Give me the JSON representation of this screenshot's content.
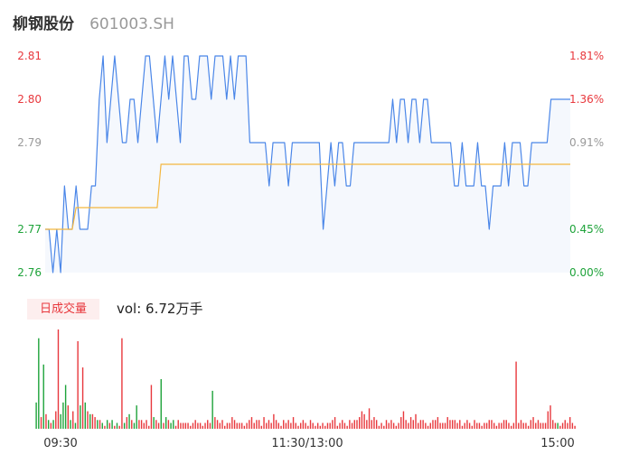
{
  "header": {
    "name": "柳钢股份",
    "code": "601003.SH"
  },
  "volume_panel": {
    "tab_label": "日成交量",
    "vol_label": "vol: 6.72万手"
  },
  "colors": {
    "price_line": "#4a86e8",
    "avg_line": "#f4b63f",
    "area_fill": "#f5f8fd",
    "up": "#e8383d",
    "down": "#1ea33a",
    "axis_neutral": "#999999"
  },
  "chart_data": [
    {
      "type": "line",
      "name": "price",
      "ylim": [
        2.76,
        2.81
      ],
      "yticks_left": [
        "2.81",
        "2.80",
        "2.79",
        "2.77",
        "2.76"
      ],
      "yticks_left_values": [
        2.81,
        2.8,
        2.79,
        2.77,
        2.76
      ],
      "yticks_right": [
        "1.81%",
        "1.36%",
        "0.91%",
        "0.45%",
        "0.00%"
      ],
      "grid": false,
      "series": [
        {
          "values": [
            2.77,
            2.77,
            2.76,
            2.77,
            2.76,
            2.78,
            2.77,
            2.77,
            2.78,
            2.77,
            2.77,
            2.77,
            2.78,
            2.78,
            2.8,
            2.81,
            2.79,
            2.8,
            2.81,
            2.8,
            2.79,
            2.79,
            2.8,
            2.8,
            2.79,
            2.8,
            2.81,
            2.81,
            2.8,
            2.79,
            2.8,
            2.81,
            2.8,
            2.81,
            2.8,
            2.79,
            2.81,
            2.81,
            2.8,
            2.8,
            2.81,
            2.81,
            2.81,
            2.8,
            2.81,
            2.81,
            2.81,
            2.8,
            2.81,
            2.8,
            2.81,
            2.81,
            2.81,
            2.79,
            2.79,
            2.79,
            2.79,
            2.79,
            2.78,
            2.79,
            2.79,
            2.79,
            2.79,
            2.78,
            2.79,
            2.79,
            2.79,
            2.79,
            2.79,
            2.79,
            2.79,
            2.79,
            2.77,
            2.78,
            2.79,
            2.78,
            2.79,
            2.79,
            2.78,
            2.78,
            2.79,
            2.79,
            2.79,
            2.79,
            2.79,
            2.79,
            2.79,
            2.79,
            2.79,
            2.79,
            2.8,
            2.79,
            2.8,
            2.8,
            2.79,
            2.8,
            2.8,
            2.79,
            2.8,
            2.8,
            2.79,
            2.79,
            2.79,
            2.79,
            2.79,
            2.79,
            2.78,
            2.78,
            2.79,
            2.78,
            2.78,
            2.78,
            2.79,
            2.78,
            2.78,
            2.77,
            2.78,
            2.78,
            2.78,
            2.79,
            2.78,
            2.79,
            2.79,
            2.79,
            2.78,
            2.78,
            2.79,
            2.79,
            2.79,
            2.79,
            2.79,
            2.8,
            2.8,
            2.8,
            2.8,
            2.8,
            2.8
          ]
        },
        {
          "values": [
            2.77,
            2.77,
            2.77,
            2.77,
            2.77,
            2.77,
            2.77,
            2.77,
            2.775,
            2.775,
            2.775,
            2.775,
            2.775,
            2.775,
            2.775,
            2.775,
            2.775,
            2.775,
            2.775,
            2.775,
            2.775,
            2.775,
            2.775,
            2.775,
            2.775,
            2.775,
            2.775,
            2.775,
            2.775,
            2.775,
            2.785,
            2.785,
            2.785,
            2.785,
            2.785,
            2.785,
            2.785,
            2.785,
            2.785,
            2.785,
            2.785,
            2.785,
            2.785,
            2.785,
            2.785,
            2.785,
            2.785,
            2.785,
            2.785,
            2.785,
            2.785,
            2.785,
            2.785,
            2.785,
            2.785,
            2.785,
            2.785,
            2.785,
            2.785,
            2.785,
            2.785,
            2.785,
            2.785,
            2.785,
            2.785,
            2.785,
            2.785,
            2.785,
            2.785,
            2.785,
            2.785,
            2.785,
            2.785,
            2.785,
            2.785,
            2.785,
            2.785,
            2.785,
            2.785,
            2.785,
            2.785,
            2.785,
            2.785,
            2.785,
            2.785,
            2.785,
            2.785,
            2.785,
            2.785,
            2.785,
            2.785,
            2.785,
            2.785,
            2.785,
            2.785,
            2.785,
            2.785,
            2.785,
            2.785,
            2.785,
            2.785,
            2.785,
            2.785,
            2.785,
            2.785,
            2.785,
            2.785,
            2.785,
            2.785,
            2.785,
            2.785,
            2.785,
            2.785,
            2.785,
            2.785,
            2.785,
            2.785,
            2.785,
            2.785,
            2.785,
            2.785,
            2.785,
            2.785,
            2.785,
            2.785,
            2.785,
            2.785,
            2.785,
            2.785,
            2.785,
            2.785,
            2.785,
            2.785,
            2.785,
            2.785,
            2.785,
            2.785
          ]
        }
      ]
    },
    {
      "type": "bar",
      "name": "volume",
      "xticks": [
        "09:30",
        "11:30/13:00",
        "15:00"
      ],
      "grid": false,
      "series": [
        {
          "values": [
            0.9,
            3.1,
            0.4,
            2.2,
            0.5,
            0.3,
            0.2,
            0.3,
            0.6,
            3.4,
            0.5,
            0.9,
            1.5,
            0.8,
            0.3,
            0.6,
            0.2,
            3.0,
            0.8,
            2.1,
            0.9,
            0.6,
            0.5,
            0.5,
            0.4,
            0.3,
            0.3,
            0.2,
            0.1,
            0.3,
            0.2,
            0.3,
            0.1,
            0.2,
            0.1,
            3.1,
            0.2,
            0.4,
            0.5,
            0.3,
            0.2,
            0.8,
            0.3,
            0.3,
            0.2,
            0.3,
            0.1,
            1.5,
            0.4,
            0.3,
            0.2,
            1.7,
            0.2,
            0.4,
            0.3,
            0.2,
            0.3,
            0.1,
            0.3,
            0.2,
            0.2,
            0.2,
            0.2,
            0.1,
            0.2,
            0.3,
            0.2,
            0.2,
            0.1,
            0.2,
            0.3,
            0.2,
            1.3,
            0.4,
            0.3,
            0.2,
            0.3,
            0.1,
            0.2,
            0.2,
            0.4,
            0.3,
            0.2,
            0.2,
            0.2,
            0.1,
            0.2,
            0.3,
            0.4,
            0.2,
            0.3,
            0.3,
            0.1,
            0.4,
            0.2,
            0.3,
            0.2,
            0.5,
            0.3,
            0.2,
            0.1,
            0.3,
            0.2,
            0.3,
            0.2,
            0.4,
            0.2,
            0.1,
            0.2,
            0.3,
            0.2,
            0.1,
            0.3,
            0.2,
            0.1,
            0.2,
            0.1,
            0.2,
            0.1,
            0.2,
            0.2,
            0.3,
            0.4,
            0.1,
            0.2,
            0.3,
            0.2,
            0.1,
            0.3,
            0.2,
            0.3,
            0.3,
            0.4,
            0.6,
            0.5,
            0.3,
            0.7,
            0.3,
            0.4,
            0.3,
            0.1,
            0.2,
            0.1,
            0.3,
            0.2,
            0.3,
            0.2,
            0.1,
            0.2,
            0.4,
            0.6,
            0.3,
            0.2,
            0.4,
            0.3,
            0.5,
            0.2,
            0.3,
            0.3,
            0.2,
            0.1,
            0.2,
            0.3,
            0.3,
            0.4,
            0.2,
            0.2,
            0.2,
            0.4,
            0.3,
            0.3,
            0.3,
            0.2,
            0.3,
            0.1,
            0.2,
            0.3,
            0.2,
            0.1,
            0.3,
            0.2,
            0.2,
            0.1,
            0.2,
            0.2,
            0.3,
            0.3,
            0.2,
            0.1,
            0.2,
            0.2,
            0.3,
            0.3,
            0.2,
            0.1,
            0.2,
            2.3,
            0.2,
            0.3,
            0.2,
            0.2,
            0.1,
            0.3,
            0.4,
            0.2,
            0.3,
            0.2,
            0.2,
            0.2,
            0.6,
            0.8,
            0.3,
            0.2,
            0.2,
            0.1,
            0.2,
            0.3,
            0.2,
            0.4,
            0.2,
            0.1
          ],
          "directions": [
            "d",
            "d",
            "u",
            "d",
            "u",
            "d",
            "u",
            "d",
            "u",
            "u",
            "d",
            "d",
            "d",
            "u",
            "d",
            "u",
            "d",
            "u",
            "d",
            "u",
            "d",
            "u",
            "d",
            "u",
            "u",
            "d",
            "u",
            "d",
            "u",
            "d",
            "u",
            "d",
            "u",
            "d",
            "u",
            "u",
            "d",
            "u",
            "d",
            "u",
            "d",
            "d",
            "u",
            "u",
            "u",
            "u",
            "u",
            "u",
            "d",
            "u",
            "u",
            "d",
            "u",
            "d",
            "u",
            "d",
            "d",
            "u",
            "u",
            "u",
            "u",
            "u",
            "u",
            "u",
            "u",
            "u",
            "u",
            "u",
            "u",
            "u",
            "u",
            "u",
            "d",
            "u",
            "u",
            "u",
            "u",
            "u",
            "u",
            "u",
            "u",
            "u",
            "u",
            "u",
            "u",
            "u",
            "u",
            "u",
            "u",
            "u",
            "u",
            "u",
            "u",
            "u",
            "u",
            "u",
            "u",
            "u",
            "u",
            "u",
            "u",
            "u",
            "u",
            "u",
            "u",
            "u",
            "u",
            "u",
            "u",
            "u",
            "u",
            "u",
            "u",
            "u",
            "u",
            "u",
            "u",
            "u",
            "u",
            "u",
            "u",
            "u",
            "u",
            "u",
            "u",
            "u",
            "u",
            "u",
            "u",
            "u",
            "u",
            "u",
            "u",
            "u",
            "u",
            "u",
            "u",
            "u",
            "u",
            "u",
            "u",
            "u",
            "u",
            "u",
            "u",
            "u",
            "u",
            "u",
            "u",
            "u",
            "u",
            "u",
            "u",
            "u",
            "u",
            "u",
            "u",
            "u",
            "u",
            "u",
            "u",
            "u",
            "u",
            "u",
            "u",
            "u",
            "u",
            "u",
            "u",
            "u",
            "u",
            "u",
            "u",
            "u",
            "u",
            "u",
            "u",
            "u",
            "u",
            "u",
            "u",
            "u",
            "u",
            "u",
            "u",
            "u",
            "u",
            "u",
            "u",
            "u",
            "u",
            "u",
            "u",
            "u",
            "u",
            "u",
            "u",
            "u",
            "u",
            "u",
            "u",
            "u",
            "u",
            "u",
            "u",
            "u",
            "u",
            "u",
            "u",
            "u",
            "u",
            "u",
            "u",
            "d",
            "u",
            "u",
            "u",
            "u",
            "u",
            "u",
            "u",
            "d"
          ]
        }
      ]
    }
  ]
}
